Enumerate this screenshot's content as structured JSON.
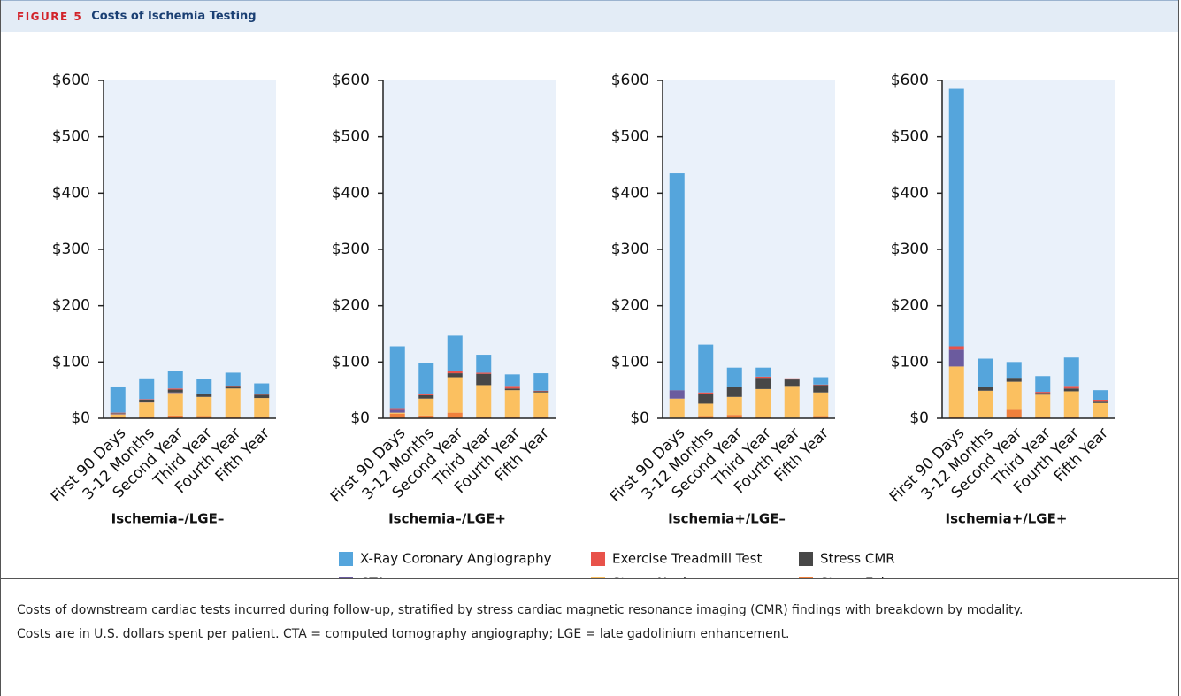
{
  "figure_label": "FIGURE 5",
  "figure_title": "Costs of Ischemia Testing",
  "caption": [
    "Costs of downstream cardiac tests incurred during follow-up, stratified by stress cardiac magnetic resonance imaging (CMR) findings with breakdown by modality.",
    "Costs are in U.S. dollars spent per patient. CTA = computed tomography angiography; LGE = late gadolinium enhancement."
  ],
  "chart_data": [
    {
      "type": "bar",
      "stacked": true,
      "x_label": "Ischemia–/LGE–",
      "categories": [
        "First 90 Days",
        "3-12 Months",
        "Second Year",
        "Third Year",
        "Fourth Year",
        "Fifth Year"
      ],
      "ylim": [
        0,
        600
      ],
      "yticks": [
        {
          "value": 0,
          "label": "$0"
        },
        {
          "value": 100,
          "label": "$100"
        },
        {
          "value": 200,
          "label": "$200"
        },
        {
          "value": 300,
          "label": "$300"
        },
        {
          "value": 400,
          "label": "$400"
        },
        {
          "value": 500,
          "label": "$500"
        },
        {
          "value": 600,
          "label": "$600"
        }
      ],
      "series": [
        {
          "name": "Stress Echo",
          "color": "#f0803c",
          "values": [
            2,
            2,
            5,
            4,
            3,
            2
          ]
        },
        {
          "name": "Stress Nuclear",
          "color": "#fbc060",
          "values": [
            5,
            26,
            40,
            34,
            50,
            34
          ]
        },
        {
          "name": "CTA",
          "color": "#6b5b9e",
          "values": [
            1,
            1,
            1,
            0,
            0,
            0
          ]
        },
        {
          "name": "Stress CMR",
          "color": "#474747",
          "values": [
            1,
            4,
            5,
            5,
            3,
            6
          ]
        },
        {
          "name": "Exercise Treadmill Test",
          "color": "#e8524a",
          "values": [
            1,
            1,
            2,
            1,
            1,
            1
          ]
        },
        {
          "name": "X-Ray Coronary Angiography",
          "color": "#55a5dc",
          "values": [
            45,
            37,
            31,
            26,
            24,
            19
          ]
        }
      ]
    },
    {
      "type": "bar",
      "stacked": true,
      "x_label": "Ischemia–/LGE+",
      "categories": [
        "First 90 Days",
        "3-12 Months",
        "Second Year",
        "Third Year",
        "Fourth Year",
        "Fifth Year"
      ],
      "ylim": [
        0,
        600
      ],
      "yticks": [
        {
          "value": 0,
          "label": "$0"
        },
        {
          "value": 100,
          "label": "$100"
        },
        {
          "value": 200,
          "label": "$200"
        },
        {
          "value": 300,
          "label": "$300"
        },
        {
          "value": 400,
          "label": "$400"
        },
        {
          "value": 500,
          "label": "$500"
        },
        {
          "value": 600,
          "label": "$600"
        }
      ],
      "series": [
        {
          "name": "Stress Echo",
          "color": "#f0803c",
          "values": [
            8,
            5,
            10,
            2,
            3,
            3
          ]
        },
        {
          "name": "Stress Nuclear",
          "color": "#fbc060",
          "values": [
            2,
            30,
            63,
            57,
            47,
            43
          ]
        },
        {
          "name": "CTA",
          "color": "#6b5b9e",
          "values": [
            5,
            0,
            0,
            0,
            0,
            0
          ]
        },
        {
          "name": "Stress CMR",
          "color": "#474747",
          "values": [
            0,
            6,
            7,
            20,
            3,
            2
          ]
        },
        {
          "name": "Exercise Treadmill Test",
          "color": "#e8524a",
          "values": [
            3,
            2,
            4,
            2,
            3,
            1
          ]
        },
        {
          "name": "X-Ray Coronary Angiography",
          "color": "#55a5dc",
          "values": [
            110,
            55,
            63,
            32,
            22,
            31
          ]
        }
      ]
    },
    {
      "type": "bar",
      "stacked": true,
      "x_label": "Ischemia+/LGE–",
      "categories": [
        "First 90 Days",
        "3-12 Months",
        "Second Year",
        "Third Year",
        "Fourth Year",
        "Fifth Year"
      ],
      "ylim": [
        0,
        600
      ],
      "yticks": [
        {
          "value": 0,
          "label": "$0"
        },
        {
          "value": 100,
          "label": "$100"
        },
        {
          "value": 200,
          "label": "$200"
        },
        {
          "value": 300,
          "label": "$300"
        },
        {
          "value": 400,
          "label": "$400"
        },
        {
          "value": 500,
          "label": "$500"
        },
        {
          "value": 600,
          "label": "$600"
        }
      ],
      "series": [
        {
          "name": "Stress Echo",
          "color": "#f0803c",
          "values": [
            1,
            4,
            6,
            2,
            1,
            4
          ]
        },
        {
          "name": "Stress Nuclear",
          "color": "#fbc060",
          "values": [
            34,
            22,
            32,
            50,
            55,
            42
          ]
        },
        {
          "name": "CTA",
          "color": "#6b5b9e",
          "values": [
            15,
            0,
            0,
            0,
            0,
            0
          ]
        },
        {
          "name": "Stress CMR",
          "color": "#474747",
          "values": [
            0,
            18,
            17,
            20,
            13,
            13
          ]
        },
        {
          "name": "Exercise Treadmill Test",
          "color": "#e8524a",
          "values": [
            0,
            2,
            0,
            2,
            2,
            1
          ]
        },
        {
          "name": "X-Ray Coronary Angiography",
          "color": "#55a5dc",
          "values": [
            385,
            85,
            35,
            16,
            0,
            13
          ]
        }
      ]
    },
    {
      "type": "bar",
      "stacked": true,
      "x_label": "Ischemia+/LGE+",
      "categories": [
        "First 90 Days",
        "3-12 Months",
        "Second Year",
        "Third Year",
        "Fourth Year",
        "Fifth Year"
      ],
      "ylim": [
        0,
        600
      ],
      "yticks": [
        {
          "value": 0,
          "label": "$0"
        },
        {
          "value": 100,
          "label": "$100"
        },
        {
          "value": 200,
          "label": "$200"
        },
        {
          "value": 300,
          "label": "$300"
        },
        {
          "value": 400,
          "label": "$400"
        },
        {
          "value": 500,
          "label": "$500"
        },
        {
          "value": 600,
          "label": "$600"
        }
      ],
      "series": [
        {
          "name": "Stress Echo",
          "color": "#f0803c",
          "values": [
            3,
            1,
            15,
            2,
            2,
            1
          ]
        },
        {
          "name": "Stress Nuclear",
          "color": "#fbc060",
          "values": [
            89,
            48,
            50,
            40,
            46,
            26
          ]
        },
        {
          "name": "CTA",
          "color": "#6b5b9e",
          "values": [
            30,
            0,
            0,
            0,
            0,
            0
          ]
        },
        {
          "name": "Stress CMR",
          "color": "#474747",
          "values": [
            0,
            6,
            7,
            3,
            5,
            4
          ]
        },
        {
          "name": "Exercise Treadmill Test",
          "color": "#e8524a",
          "values": [
            6,
            0,
            0,
            2,
            3,
            2
          ]
        },
        {
          "name": "X-Ray Coronary Angiography",
          "color": "#55a5dc",
          "values": [
            457,
            51,
            28,
            28,
            52,
            17
          ]
        }
      ]
    }
  ]
}
